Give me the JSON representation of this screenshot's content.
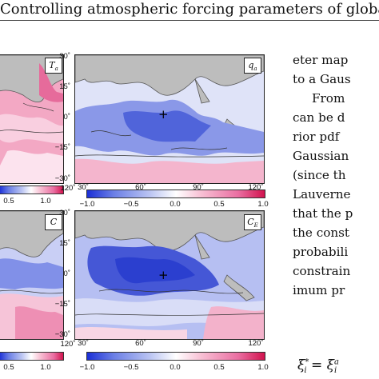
{
  "header": {
    "title": "Controlling atmospheric forcing parameters of global"
  },
  "panels": {
    "top_left": {
      "var_label": "T",
      "var_sub": "a"
    },
    "top_right": {
      "var_label": "q",
      "var_sub": "a"
    },
    "bottom_left": {
      "var_label": "C",
      "var_sub": ""
    },
    "bottom_right": {
      "var_label": "C",
      "var_sub": "E"
    }
  },
  "axes": {
    "lat_ticks": [
      "30˚",
      "15˚",
      "0˚",
      "−15˚",
      "−30˚"
    ],
    "lon_ticks": [
      "30˚",
      "60˚",
      "90˚",
      "120˚"
    ]
  },
  "colorbar": {
    "ticks_full": [
      "−1.0",
      "−0.5",
      "0.0",
      "0.5",
      "1.0"
    ],
    "ticks_cut": [
      "0.5",
      "1.0"
    ],
    "colors": [
      "#1b2fd6",
      "#ffffff",
      "#d2134e"
    ]
  },
  "body_text": [
    "eter map",
    "to a Gaus",
    "From",
    "can be d",
    "rior pdf",
    "Gaussian",
    "(since th",
    "Lauverne",
    "that the p",
    "the const",
    "probabili",
    "constrain",
    "imum pr"
  ],
  "formula": {
    "left": "ξ",
    "left_sup": "*",
    "left_sub": "i",
    "eq": " = ",
    "right": "ξ",
    "right_sup": "a",
    "right_sub": "i"
  },
  "markers": {
    "cross": "+"
  }
}
